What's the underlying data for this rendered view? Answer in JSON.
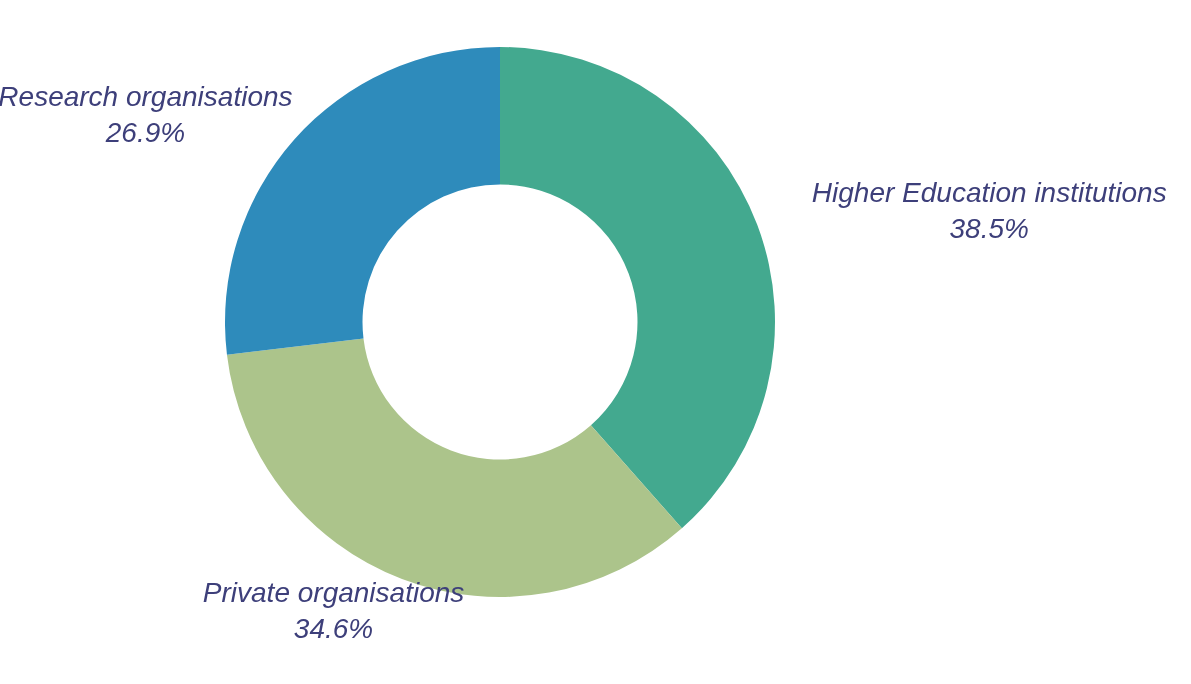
{
  "chart_data": {
    "type": "donut",
    "categories": [
      "Higher Education institutions",
      "Private organisations",
      "Research organisations"
    ],
    "values": [
      38.5,
      34.6,
      26.9
    ],
    "value_labels": [
      "38.5%",
      "34.6%",
      "26.9%"
    ],
    "colors": [
      "#43a98f",
      "#acc48b",
      "#2e8bbb"
    ]
  }
}
